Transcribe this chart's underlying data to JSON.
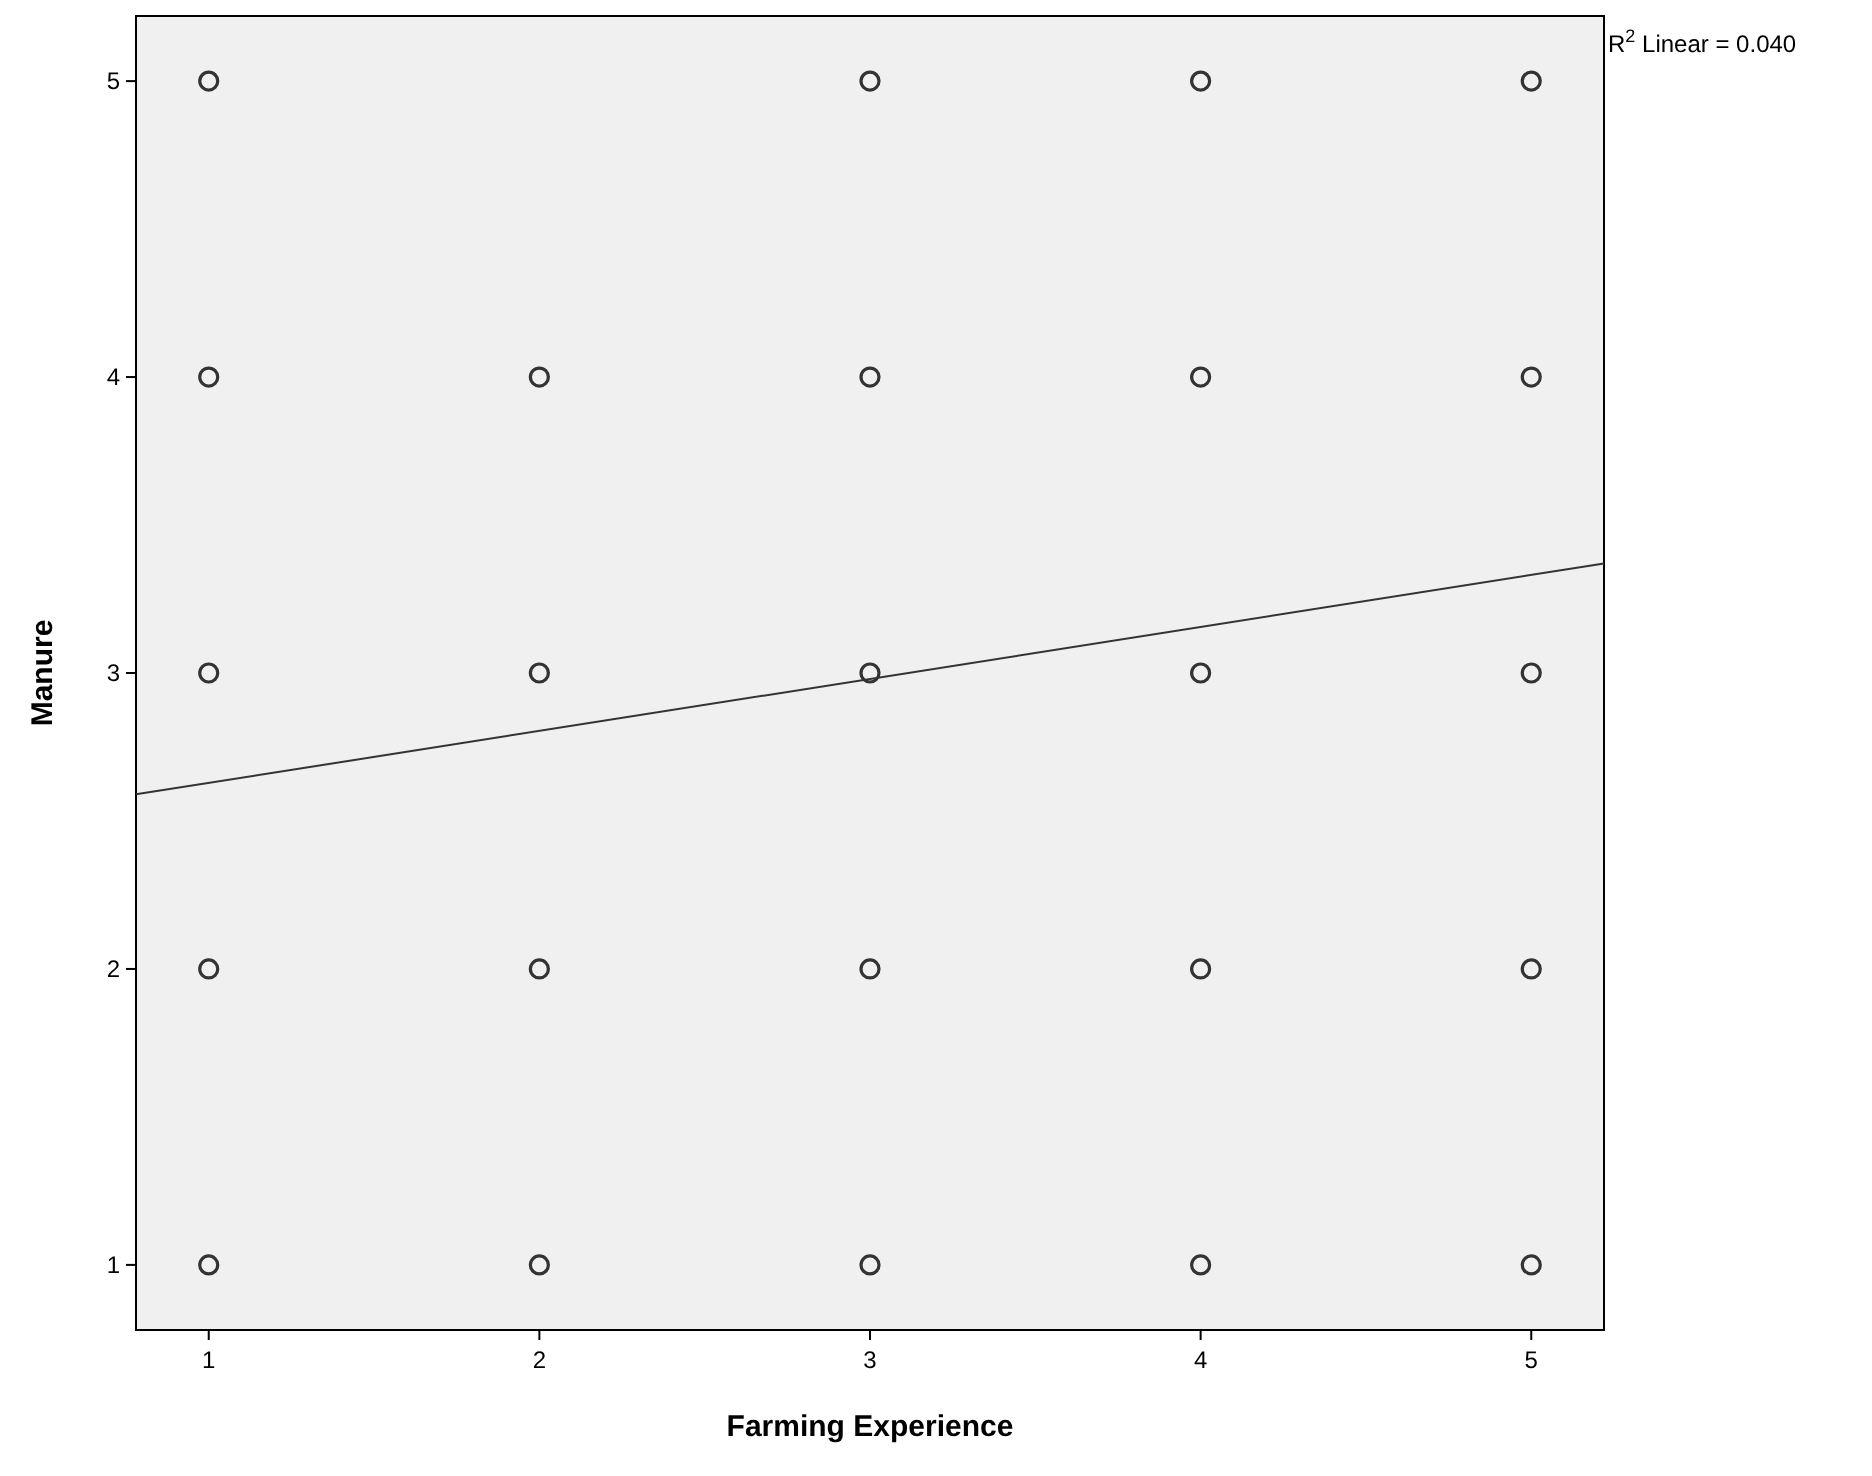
{
  "chart_data": {
    "type": "scatter",
    "xlabel": "Farming Experience",
    "ylabel": "Manure",
    "xlim": [
      0.78,
      5.22
    ],
    "ylim": [
      0.78,
      5.22
    ],
    "xticks": [
      1,
      2,
      3,
      4,
      5
    ],
    "yticks": [
      1,
      2,
      3,
      4,
      5
    ],
    "grid": false,
    "annotations": [
      "R$^{2}$ Linear = 0.040"
    ],
    "series": [
      {
        "marker": "circle",
        "color": "#333333",
        "x": [
          1,
          3,
          4,
          5,
          1,
          2,
          3,
          4,
          5,
          1,
          2,
          3,
          4,
          5,
          1,
          2,
          3,
          4,
          5,
          1,
          2,
          3,
          4,
          5
        ],
        "values": [
          5,
          5,
          5,
          5,
          4,
          4,
          4,
          4,
          4,
          3,
          3,
          3,
          3,
          3,
          2,
          2,
          2,
          2,
          2,
          1,
          1,
          1,
          1,
          1
        ]
      },
      {
        "type": "line",
        "color": "#333333",
        "line_style": "solid",
        "x": [
          0.78,
          5.22
        ],
        "values": [
          2.59,
          3.37
        ]
      }
    ]
  }
}
